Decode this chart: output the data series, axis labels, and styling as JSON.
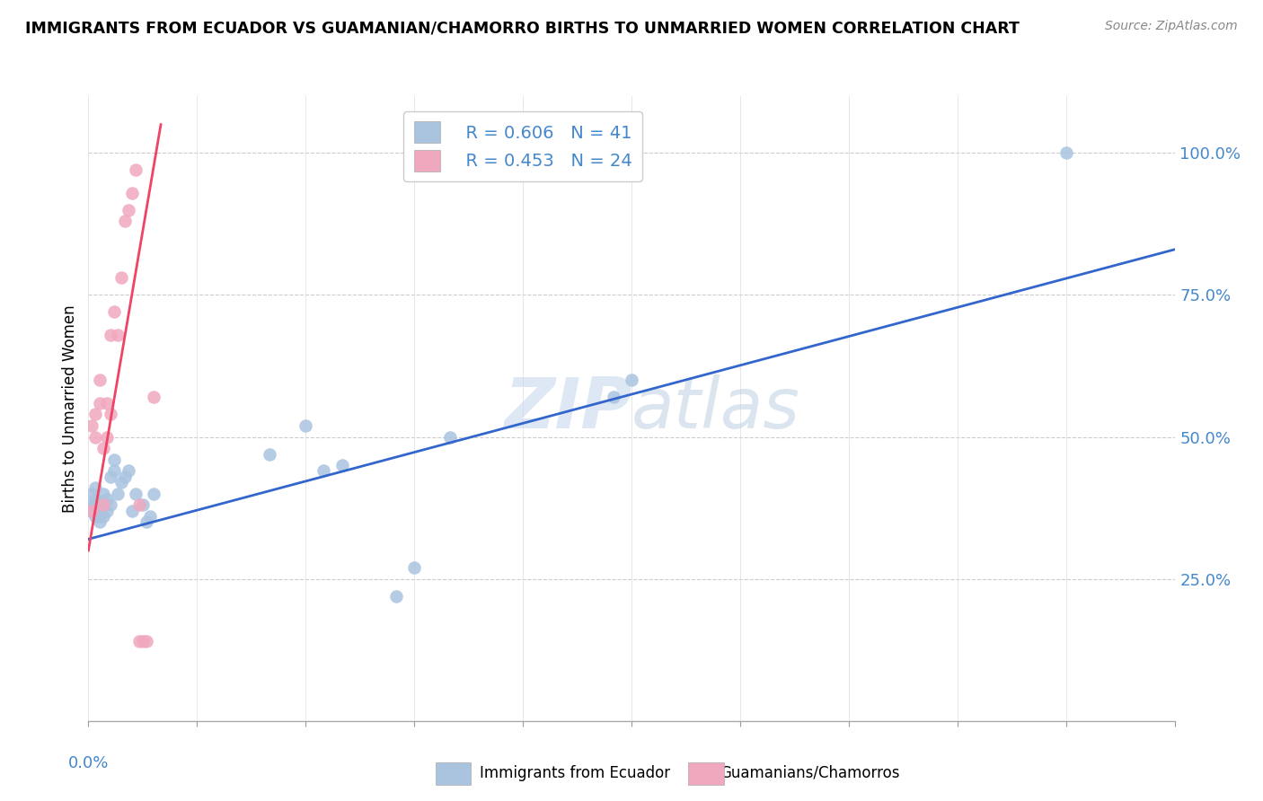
{
  "title": "IMMIGRANTS FROM ECUADOR VS GUAMANIAN/CHAMORRO BIRTHS TO UNMARRIED WOMEN CORRELATION CHART",
  "source": "Source: ZipAtlas.com",
  "ylabel": "Births to Unmarried Women",
  "right_yticks": [
    0.25,
    0.5,
    0.75,
    1.0
  ],
  "right_yticklabels": [
    "25.0%",
    "50.0%",
    "75.0%",
    "100.0%"
  ],
  "legend_blue_r": "R = 0.606",
  "legend_blue_n": "N = 41",
  "legend_pink_r": "R = 0.453",
  "legend_pink_n": "N = 24",
  "blue_color": "#aac4e0",
  "pink_color": "#f0a8be",
  "blue_line_color": "#3366cc",
  "pink_line_color": "#ee4466",
  "watermark": "ZIPatlas",
  "blue_scatter_x": [
    0.001,
    0.001,
    0.001,
    0.002,
    0.002,
    0.002,
    0.002,
    0.002,
    0.003,
    0.003,
    0.003,
    0.003,
    0.004,
    0.004,
    0.004,
    0.005,
    0.005,
    0.006,
    0.006,
    0.007,
    0.007,
    0.008,
    0.009,
    0.01,
    0.011,
    0.012,
    0.013,
    0.015,
    0.016,
    0.017,
    0.018,
    0.05,
    0.06,
    0.065,
    0.07,
    0.085,
    0.09,
    0.1,
    0.145,
    0.15,
    0.27
  ],
  "blue_scatter_y": [
    0.37,
    0.38,
    0.4,
    0.36,
    0.37,
    0.38,
    0.39,
    0.41,
    0.35,
    0.36,
    0.37,
    0.38,
    0.36,
    0.38,
    0.4,
    0.37,
    0.39,
    0.38,
    0.43,
    0.44,
    0.46,
    0.4,
    0.42,
    0.43,
    0.44,
    0.37,
    0.4,
    0.38,
    0.35,
    0.36,
    0.4,
    0.47,
    0.52,
    0.44,
    0.45,
    0.22,
    0.27,
    0.5,
    0.57,
    0.6,
    1.0
  ],
  "pink_scatter_x": [
    0.001,
    0.001,
    0.002,
    0.002,
    0.003,
    0.003,
    0.004,
    0.004,
    0.005,
    0.005,
    0.006,
    0.006,
    0.007,
    0.008,
    0.009,
    0.01,
    0.011,
    0.012,
    0.013,
    0.014,
    0.014,
    0.015,
    0.016,
    0.018
  ],
  "pink_scatter_y": [
    0.37,
    0.52,
    0.5,
    0.54,
    0.56,
    0.6,
    0.38,
    0.48,
    0.5,
    0.56,
    0.54,
    0.68,
    0.72,
    0.68,
    0.78,
    0.88,
    0.9,
    0.93,
    0.97,
    0.14,
    0.38,
    0.14,
    0.14,
    0.57
  ],
  "blue_line_x": [
    0.0,
    0.3
  ],
  "blue_line_y": [
    0.32,
    0.83
  ],
  "pink_line_x": [
    0.0,
    0.02
  ],
  "pink_line_y": [
    0.3,
    1.05
  ],
  "xmin": 0.0,
  "xmax": 0.3,
  "ymin": 0.0,
  "ymax": 1.1
}
